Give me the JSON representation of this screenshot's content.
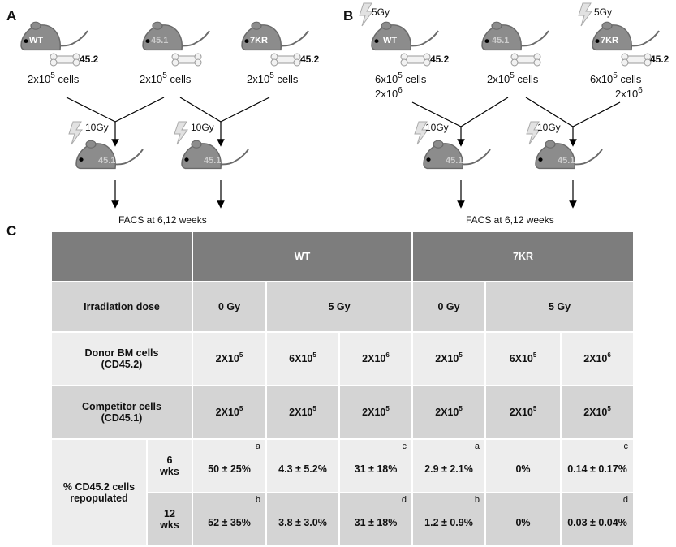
{
  "panels": {
    "a": "A",
    "b": "B",
    "c": "C"
  },
  "panel_a": {
    "donors": [
      {
        "mouse_label": "WT",
        "marker": "45.2",
        "cells": "2x10",
        "cells_exp": "5",
        "cells_unit": "cells"
      },
      {
        "mouse_label": "45.1",
        "marker": "",
        "cells": "2x10",
        "cells_exp": "5",
        "cells_unit": "cells"
      },
      {
        "mouse_label": "7KR",
        "marker": "45.2",
        "cells": "2x10",
        "cells_exp": "5",
        "cells_unit": "cells"
      }
    ],
    "recipients": [
      {
        "dose": "10Gy",
        "mouse_label": "45.1"
      },
      {
        "dose": "10Gy",
        "mouse_label": "45.1"
      }
    ],
    "footer": "FACS at 6,12 weeks"
  },
  "panel_b": {
    "donors": [
      {
        "mouse_label": "WT",
        "pre_dose": "5Gy",
        "marker": "45.2",
        "cells": "6x10",
        "cells_exp": "5",
        "cells_unit": "cells",
        "cells2": "2x10",
        "cells2_exp": "6"
      },
      {
        "mouse_label": "45.1",
        "marker": "",
        "cells": "2x10",
        "cells_exp": "5",
        "cells_unit": "cells"
      },
      {
        "mouse_label": "7KR",
        "pre_dose": "5Gy",
        "marker": "45.2",
        "cells": "6x10",
        "cells_exp": "5",
        "cells_unit": "cells",
        "cells2": "2x10",
        "cells2_exp": "6"
      }
    ],
    "recipients": [
      {
        "dose": "10Gy",
        "mouse_label": "45.1"
      },
      {
        "dose": "10Gy",
        "mouse_label": "45.1"
      }
    ],
    "footer": "FACS at 6,12 weeks"
  },
  "table": {
    "header": {
      "wt": "WT",
      "kr": "7KR"
    },
    "rows": {
      "irradiation": {
        "label": "Irradiation dose",
        "wt": [
          "0 Gy",
          "5 Gy"
        ],
        "kr": [
          "0 Gy",
          "5 Gy"
        ]
      },
      "donor": {
        "label": "Donor BM cells",
        "label2": "(CD45.2)",
        "cells": [
          {
            "base": "2X10",
            "exp": "5"
          },
          {
            "base": "6X10",
            "exp": "5"
          },
          {
            "base": "2X10",
            "exp": "6"
          },
          {
            "base": "2X10",
            "exp": "5"
          },
          {
            "base": "6X10",
            "exp": "5"
          },
          {
            "base": "2X10",
            "exp": "6"
          }
        ]
      },
      "competitor": {
        "label": "Competitor cells",
        "label2": "(CD45.1)",
        "cells": [
          {
            "base": "2X10",
            "exp": "5"
          },
          {
            "base": "2X10",
            "exp": "5"
          },
          {
            "base": "2X10",
            "exp": "5"
          },
          {
            "base": "2X10",
            "exp": "5"
          },
          {
            "base": "2X10",
            "exp": "5"
          },
          {
            "base": "2X10",
            "exp": "5"
          }
        ]
      },
      "repop": {
        "label": "% CD45.2 cells",
        "label2": "repopulated",
        "wk6": {
          "label": "6",
          "label2": "wks",
          "values": [
            {
              "v": "50 ± 25%",
              "l": "a"
            },
            {
              "v": "4.3 ± 5.2%",
              "l": ""
            },
            {
              "v": "31 ± 18%",
              "l": "c"
            },
            {
              "v": "2.9 ± 2.1%",
              "l": "a"
            },
            {
              "v": "0%",
              "l": ""
            },
            {
              "v": "0.14 ± 0.17%",
              "l": "c"
            }
          ]
        },
        "wk12": {
          "label": "12",
          "label2": "wks",
          "values": [
            {
              "v": "52 ± 35%",
              "l": "b"
            },
            {
              "v": "3.8 ± 3.0%",
              "l": ""
            },
            {
              "v": "31 ± 18%",
              "l": "d"
            },
            {
              "v": "1.2 ± 0.9%",
              "l": "b"
            },
            {
              "v": "0%",
              "l": ""
            },
            {
              "v": "0.03 ± 0.04%",
              "l": "d"
            }
          ]
        }
      }
    }
  },
  "colors": {
    "mouse": "#8c8c8c",
    "mouse_stroke": "#6a6a6a",
    "header": "#7d7d7d",
    "row_dark": "#d4d4d4",
    "row_light": "#ededed"
  }
}
